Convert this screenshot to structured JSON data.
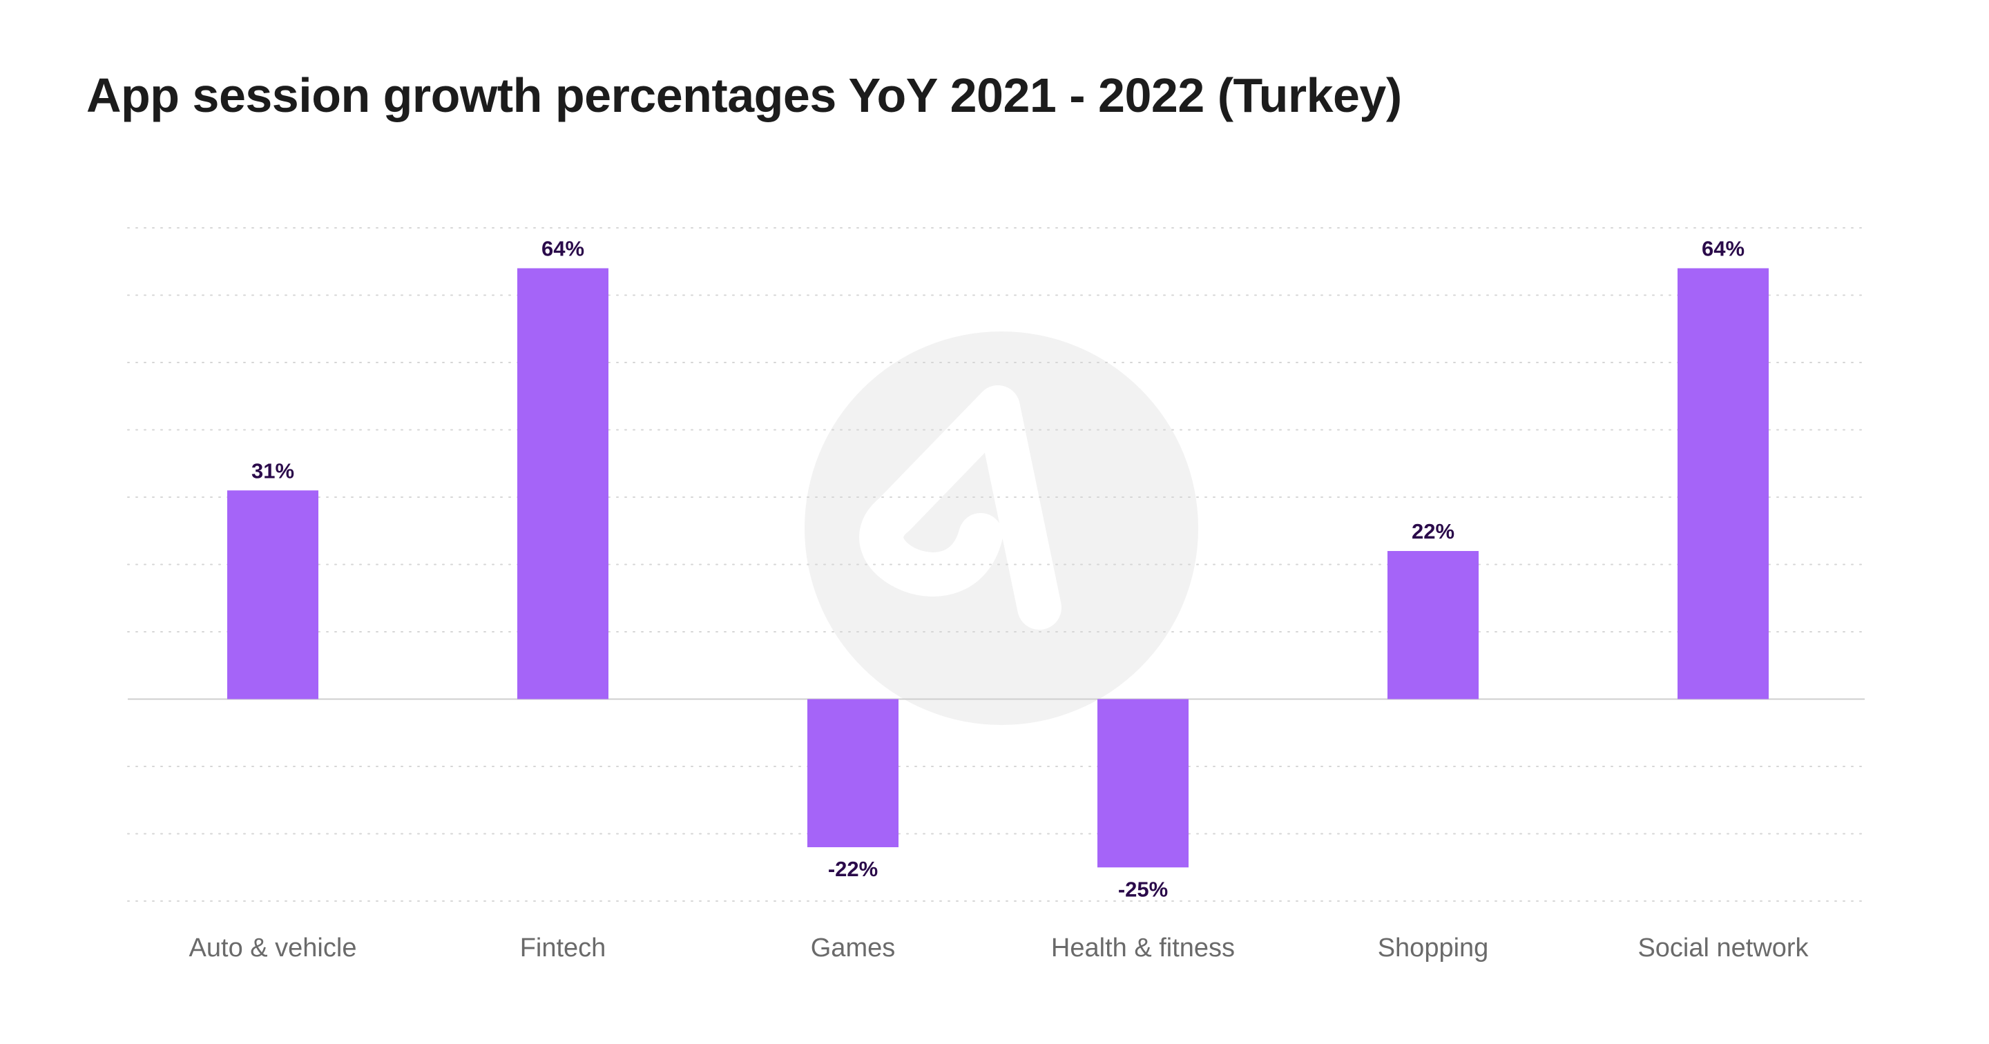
{
  "chart_data": {
    "type": "bar",
    "title": "App session growth percentages YoY 2021 - 2022 (Turkey)",
    "xlabel": "",
    "ylabel": "",
    "categories": [
      "Auto & vehicle",
      "Fintech",
      "Games",
      "Health & fitness",
      "Shopping",
      "Social network"
    ],
    "values": [
      31,
      64,
      -22,
      -25,
      22,
      64
    ],
    "data_labels": [
      "31%",
      "64%",
      "-22%",
      "-25%",
      "22%",
      "64%"
    ],
    "ylim": [
      -30,
      70
    ],
    "grid": true,
    "legend": "none",
    "colors": {
      "bar": "#a564f8",
      "data_label": "#2a0a4a",
      "tick_label": "#6a6a6a",
      "title": "#1c1c1c",
      "grid": "#d6d6d6"
    },
    "watermark": "adjust-logo-icon"
  }
}
